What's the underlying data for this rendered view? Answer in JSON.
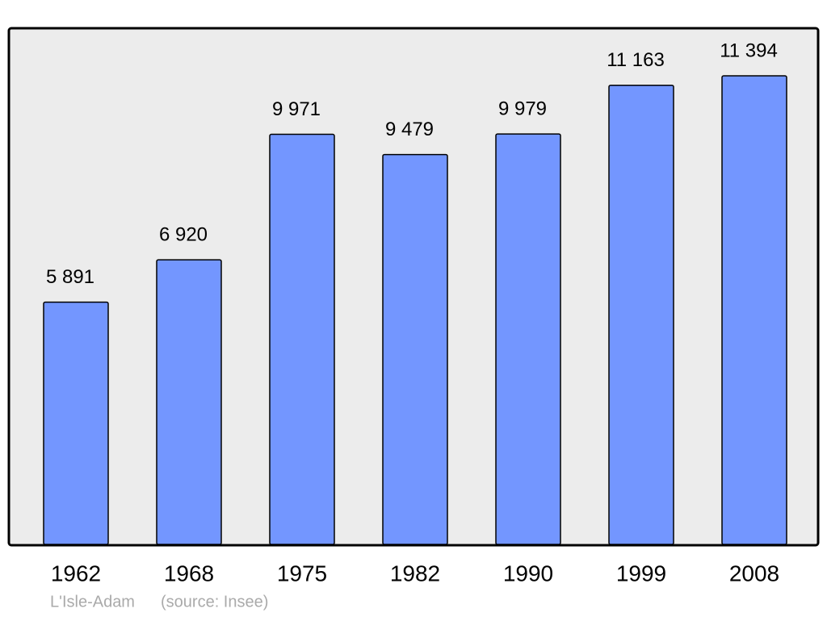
{
  "chart_data": {
    "type": "bar",
    "categories": [
      "1962",
      "1968",
      "1975",
      "1982",
      "1990",
      "1999",
      "2008"
    ],
    "values": [
      5891,
      6920,
      9971,
      9479,
      9979,
      11163,
      11394
    ],
    "value_labels": [
      "5 891",
      "6 920",
      "9 971",
      "9 479",
      "9 979",
      "11 163",
      "11 394"
    ],
    "color": "#7396ff",
    "ylim": [
      0,
      12550
    ],
    "annotations": [
      "L'Isle-Adam",
      "(source: Insee)"
    ]
  }
}
